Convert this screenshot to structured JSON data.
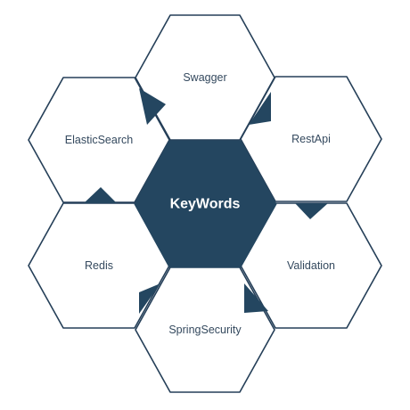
{
  "center": {
    "label": "KeyWords",
    "color": "#244660"
  },
  "topics": [
    {
      "id": "swagger",
      "label": "Swagger"
    },
    {
      "id": "restapi",
      "label": "RestApi"
    },
    {
      "id": "validation",
      "label": "Validation"
    },
    {
      "id": "springsecurity",
      "label": "SpringSecurity"
    },
    {
      "id": "redis",
      "label": "Redis"
    },
    {
      "id": "elasticsearch",
      "label": "ElasticSearch"
    }
  ],
  "colors": {
    "outline": "#253f58",
    "text": "#34495e",
    "accent": "#244660"
  }
}
